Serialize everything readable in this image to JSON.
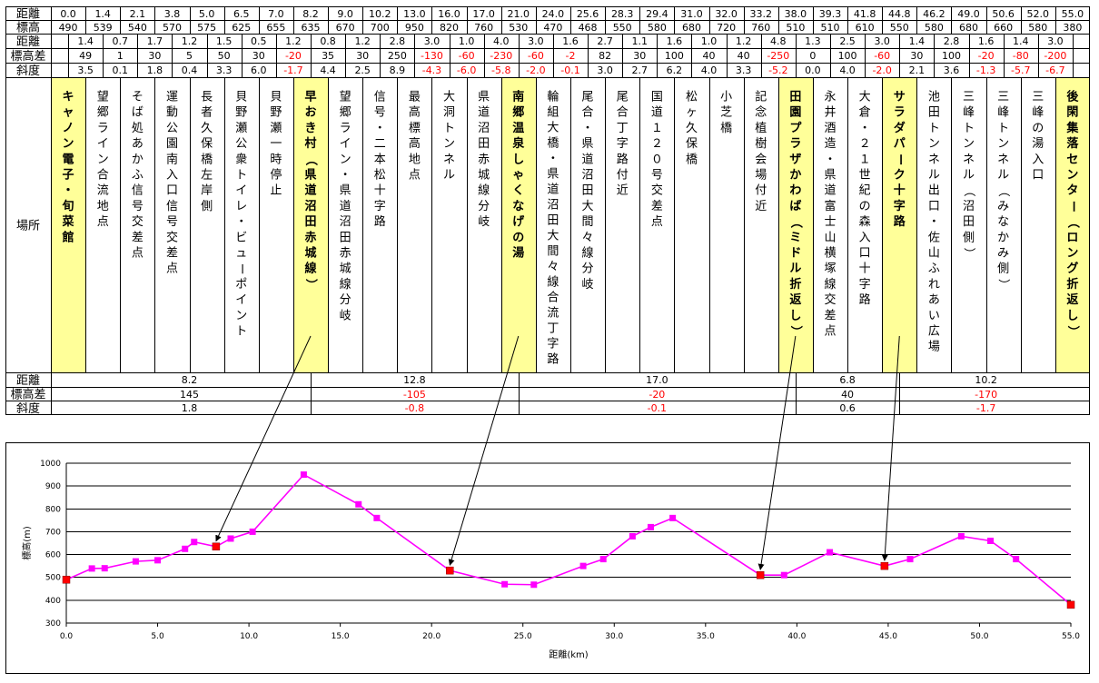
{
  "row_labels": {
    "distance": "距離",
    "elevation": "標高",
    "seg_distance": "距離",
    "seg_elev_diff": "標高差",
    "seg_slope": "斜度",
    "place": "場所",
    "leg_distance": "距離",
    "leg_elev_diff": "標高差",
    "leg_slope": "斜度"
  },
  "points": [
    {
      "km": "0.0",
      "elev": "490",
      "place": "キャノン電子・旬菜館",
      "highlight": true
    },
    {
      "km": "1.4",
      "elev": "539",
      "place": "望郷ライン合流地点",
      "highlight": false
    },
    {
      "km": "2.1",
      "elev": "540",
      "place": "そば処あかふ信号交差点",
      "highlight": false
    },
    {
      "km": "3.8",
      "elev": "570",
      "place": "運動公園南入口信号交差点",
      "highlight": false
    },
    {
      "km": "5.0",
      "elev": "575",
      "place": "長者久保橋左岸側",
      "highlight": false
    },
    {
      "km": "6.5",
      "elev": "625",
      "place": "貝野瀬公衆トイレ・ビューポイント",
      "highlight": false
    },
    {
      "km": "7.0",
      "elev": "655",
      "place": "貝野瀬一時停止",
      "highlight": false
    },
    {
      "km": "8.2",
      "elev": "635",
      "place": "早おき村（県道沼田赤城線）",
      "highlight": true
    },
    {
      "km": "9.0",
      "elev": "670",
      "place": "望郷ライン・県道沼田赤城線分岐",
      "highlight": false
    },
    {
      "km": "10.2",
      "elev": "700",
      "place": "信号・二本松十字路",
      "highlight": false
    },
    {
      "km": "13.0",
      "elev": "950",
      "place": "最高標高地点",
      "highlight": false
    },
    {
      "km": "16.0",
      "elev": "820",
      "place": "大洞トンネル",
      "highlight": false
    },
    {
      "km": "17.0",
      "elev": "760",
      "place": "県道沼田赤城線分岐",
      "highlight": false
    },
    {
      "km": "21.0",
      "elev": "530",
      "place": "南郷温泉しゃくなげの湯",
      "highlight": true
    },
    {
      "km": "24.0",
      "elev": "470",
      "place": "輪組大橋・県道沼田大間々線合流丁字路",
      "highlight": false
    },
    {
      "km": "25.6",
      "elev": "468",
      "place": "尾合・県道沼田大間々線分岐",
      "highlight": false
    },
    {
      "km": "28.3",
      "elev": "550",
      "place": "尾合丁字路付近",
      "highlight": false
    },
    {
      "km": "29.4",
      "elev": "580",
      "place": "国道１２０号交差点",
      "highlight": false
    },
    {
      "km": "31.0",
      "elev": "680",
      "place": "松ヶ久保橋",
      "highlight": false
    },
    {
      "km": "32.0",
      "elev": "720",
      "place": "小芝橋",
      "highlight": false
    },
    {
      "km": "33.2",
      "elev": "760",
      "place": "記念植樹会場付近",
      "highlight": false
    },
    {
      "km": "38.0",
      "elev": "510",
      "place": "田園プラザかわば（ミドル折返し）",
      "highlight": true
    },
    {
      "km": "39.3",
      "elev": "510",
      "place": "永井酒造・県道富士山横塚線交差点",
      "highlight": false
    },
    {
      "km": "41.8",
      "elev": "610",
      "place": "大倉・２１世紀の森入口十字路",
      "highlight": false
    },
    {
      "km": "44.8",
      "elev": "550",
      "place": "サラダパーク十字路",
      "highlight": true
    },
    {
      "km": "46.2",
      "elev": "580",
      "place": "池田トンネル出口・佐山ふれあい広場",
      "highlight": false
    },
    {
      "km": "49.0",
      "elev": "680",
      "place": "三峰トンネル（沼田側）",
      "highlight": false
    },
    {
      "km": "50.6",
      "elev": "660",
      "place": "三峰トンネル（みなかみ側）",
      "highlight": false
    },
    {
      "km": "52.0",
      "elev": "580",
      "place": "三峰の湯入口",
      "highlight": false
    },
    {
      "km": "55.0",
      "elev": "380",
      "place": "後閑集落センター（ロング折返し）",
      "highlight": true
    }
  ],
  "segments": [
    {
      "dist": "1.4",
      "diff": "49",
      "slope": "3.5"
    },
    {
      "dist": "0.7",
      "diff": "1",
      "slope": "0.1"
    },
    {
      "dist": "1.7",
      "diff": "30",
      "slope": "1.8"
    },
    {
      "dist": "1.2",
      "diff": "5",
      "slope": "0.4"
    },
    {
      "dist": "1.5",
      "diff": "50",
      "slope": "3.3"
    },
    {
      "dist": "0.5",
      "diff": "30",
      "slope": "6.0"
    },
    {
      "dist": "1.2",
      "diff": "-20",
      "slope": "-1.7"
    },
    {
      "dist": "0.8",
      "diff": "35",
      "slope": "4.4"
    },
    {
      "dist": "1.2",
      "diff": "30",
      "slope": "2.5"
    },
    {
      "dist": "2.8",
      "diff": "250",
      "slope": "8.9"
    },
    {
      "dist": "3.0",
      "diff": "-130",
      "slope": "-4.3"
    },
    {
      "dist": "1.0",
      "diff": "-60",
      "slope": "-6.0"
    },
    {
      "dist": "4.0",
      "diff": "-230",
      "slope": "-5.8"
    },
    {
      "dist": "3.0",
      "diff": "-60",
      "slope": "-2.0"
    },
    {
      "dist": "1.6",
      "diff": "-2",
      "slope": "-0.1"
    },
    {
      "dist": "2.7",
      "diff": "82",
      "slope": "3.0"
    },
    {
      "dist": "1.1",
      "diff": "30",
      "slope": "2.7"
    },
    {
      "dist": "1.6",
      "diff": "100",
      "slope": "6.2"
    },
    {
      "dist": "1.0",
      "diff": "40",
      "slope": "4.0"
    },
    {
      "dist": "1.2",
      "diff": "40",
      "slope": "3.3"
    },
    {
      "dist": "4.8",
      "diff": "-250",
      "slope": "-5.2"
    },
    {
      "dist": "1.3",
      "diff": "0",
      "slope": "0.0"
    },
    {
      "dist": "2.5",
      "diff": "100",
      "slope": "4.0"
    },
    {
      "dist": "3.0",
      "diff": "-60",
      "slope": "-2.0"
    },
    {
      "dist": "1.4",
      "diff": "30",
      "slope": "2.1"
    },
    {
      "dist": "2.8",
      "diff": "100",
      "slope": "3.6"
    },
    {
      "dist": "1.6",
      "diff": "-20",
      "slope": "-1.3"
    },
    {
      "dist": "1.4",
      "diff": "-80",
      "slope": "-5.7"
    },
    {
      "dist": "3.0",
      "diff": "-200",
      "slope": "-6.7"
    }
  ],
  "legs": [
    {
      "from": 0,
      "to": 7,
      "dist": "8.2",
      "diff": "145",
      "slope": "1.8"
    },
    {
      "from": 7,
      "to": 13,
      "dist": "12.8",
      "diff": "-105",
      "slope": "-0.8"
    },
    {
      "from": 13,
      "to": 21,
      "dist": "17.0",
      "diff": "-20",
      "slope": "-0.1"
    },
    {
      "from": 21,
      "to": 24,
      "dist": "6.8",
      "diff": "40",
      "slope": "0.6"
    },
    {
      "from": 24,
      "to": 29,
      "dist": "10.2",
      "diff": "-170",
      "slope": "-1.7"
    }
  ],
  "colors": {
    "highlight_bg": "#ffff99",
    "negative_text": "#ff0000",
    "line": "#ff00ff",
    "marker": "#ff00ff",
    "key_marker": "#ff0000",
    "grid": "#000000"
  },
  "chart_data": {
    "type": "line",
    "xlabel": "距離(km)",
    "ylabel": "標高(m)",
    "xlim": [
      0,
      55
    ],
    "ylim": [
      300,
      1000
    ],
    "xticks": [
      "0.0",
      "5.0",
      "10.0",
      "15.0",
      "20.0",
      "25.0",
      "30.0",
      "35.0",
      "40.0",
      "45.0",
      "50.0",
      "55.0"
    ],
    "yticks": [
      "300",
      "400",
      "500",
      "600",
      "700",
      "800",
      "900",
      "1000"
    ],
    "grid": "horizontal",
    "x": [
      0.0,
      1.4,
      2.1,
      3.8,
      5.0,
      6.5,
      7.0,
      8.2,
      9.0,
      10.2,
      13.0,
      16.0,
      17.0,
      21.0,
      24.0,
      25.6,
      28.3,
      29.4,
      31.0,
      32.0,
      33.2,
      38.0,
      39.3,
      41.8,
      44.8,
      46.2,
      49.0,
      50.6,
      52.0,
      55.0
    ],
    "y": [
      490,
      539,
      540,
      570,
      575,
      625,
      655,
      635,
      670,
      700,
      950,
      820,
      760,
      530,
      470,
      468,
      550,
      580,
      680,
      720,
      760,
      510,
      510,
      610,
      550,
      580,
      680,
      660,
      580,
      380
    ],
    "key_points_x": [
      0.0,
      8.2,
      21.0,
      38.0,
      44.8,
      55.0
    ]
  }
}
